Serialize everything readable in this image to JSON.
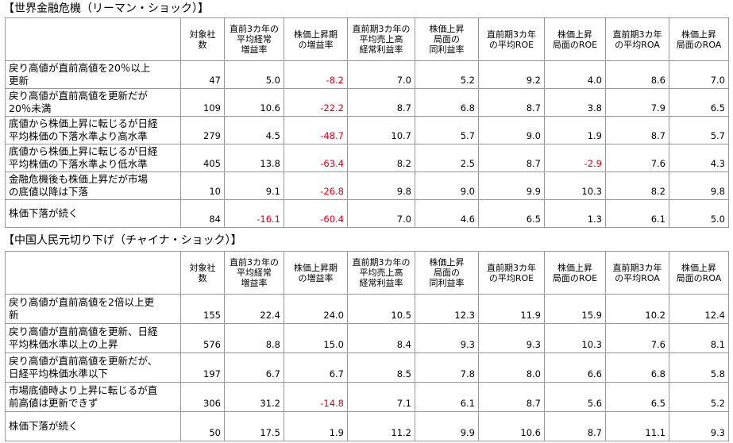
{
  "sections": [
    {
      "title": "【世界金融危機（リーマン・ショック）】",
      "headers": [
        "対象社\n数",
        "直前3カ年の\n平均経常\n増益率",
        "株価上昇期\nの増益率",
        "直前期3カ年の\n平均売上高\n経常利益率",
        "株価上昇\n局面の\n同利益率",
        "直前期3カ年\nの平均ROE",
        "株価上昇\n局面のROE",
        "直前期3カ年\nの平均ROA",
        "株価上昇\n局面のROA"
      ],
      "rows": [
        [
          "戻り高値が直前高値を20％以上\n更新",
          "47",
          "5.0",
          "-8.2",
          "7.0",
          "5.2",
          "9.2",
          "4.0",
          "8.6",
          "7.0"
        ],
        [
          "戻り高値が直前高値を更新だが\n20％未満",
          "109",
          "10.6",
          "-22.2",
          "8.7",
          "6.8",
          "8.7",
          "3.8",
          "7.9",
          "6.5"
        ],
        [
          "底値から株価上昇に転じるが日経\n平均株価の下落水準より高水準",
          "279",
          "4.5",
          "-48.7",
          "10.7",
          "5.7",
          "9.0",
          "1.9",
          "8.7",
          "5.7"
        ],
        [
          "底値から株価上昇に転じるが日経\n平均株価の下落水準より低水準",
          "405",
          "13.8",
          "-63.4",
          "8.2",
          "2.5",
          "8.7",
          "-2.9",
          "7.6",
          "4.3"
        ],
        [
          "金融危機後も株価上昇だが市場\nの底値以降は下落",
          "10",
          "9.1",
          "-26.8",
          "9.8",
          "9.0",
          "9.9",
          "10.3",
          "8.2",
          "9.8"
        ],
        [
          "株価下落が続く",
          "84",
          "-16.1",
          "-60.4",
          "7.0",
          "4.6",
          "6.5",
          "1.3",
          "6.1",
          "5.0"
        ]
      ]
    },
    {
      "title": "【中国人民元切り下げ（チャイナ・ショック）】",
      "headers": [
        "対象社\n数",
        "直前3カ年の\n平均経常\n増益率",
        "株価上昇期\nの増益率",
        "直前期3カ年の\n平均売上高\n経常利益率",
        "株価上昇\n局面の\n同利益率",
        "直前期3カ年\nの平均ROE",
        "株価上昇\n局面のROE",
        "直前期3カ年\nの平均ROA",
        "株価上昇\n局面のROA"
      ],
      "rows": [
        [
          "戻り高値が直前高値を2倍以上更\n新",
          "155",
          "22.4",
          "24.0",
          "10.5",
          "12.3",
          "11.9",
          "15.9",
          "10.2",
          "12.4"
        ],
        [
          "戻り高値が直前高値を更新、日経\n平均株価水準以上の上昇",
          "576",
          "8.8",
          "15.0",
          "8.4",
          "9.3",
          "9.3",
          "10.3",
          "7.6",
          "8.1"
        ],
        [
          "戻り高値が直前高値を更新だが、\n日経平均株価水準以下",
          "197",
          "6.7",
          "6.7",
          "8.5",
          "7.8",
          "8.0",
          "6.6",
          "6.8",
          "5.8"
        ],
        [
          "市場底値時より上昇に転じるが直\n前高値は更新できず",
          "306",
          "31.2",
          "-14.8",
          "7.1",
          "6.1",
          "8.7",
          "5.6",
          "6.5",
          "5.2"
        ],
        [
          "株価下落が続く",
          "50",
          "17.5",
          "1.9",
          "11.2",
          "9.9",
          "10.6",
          "8.7",
          "11.1",
          "9.3"
        ]
      ]
    }
  ]
}
